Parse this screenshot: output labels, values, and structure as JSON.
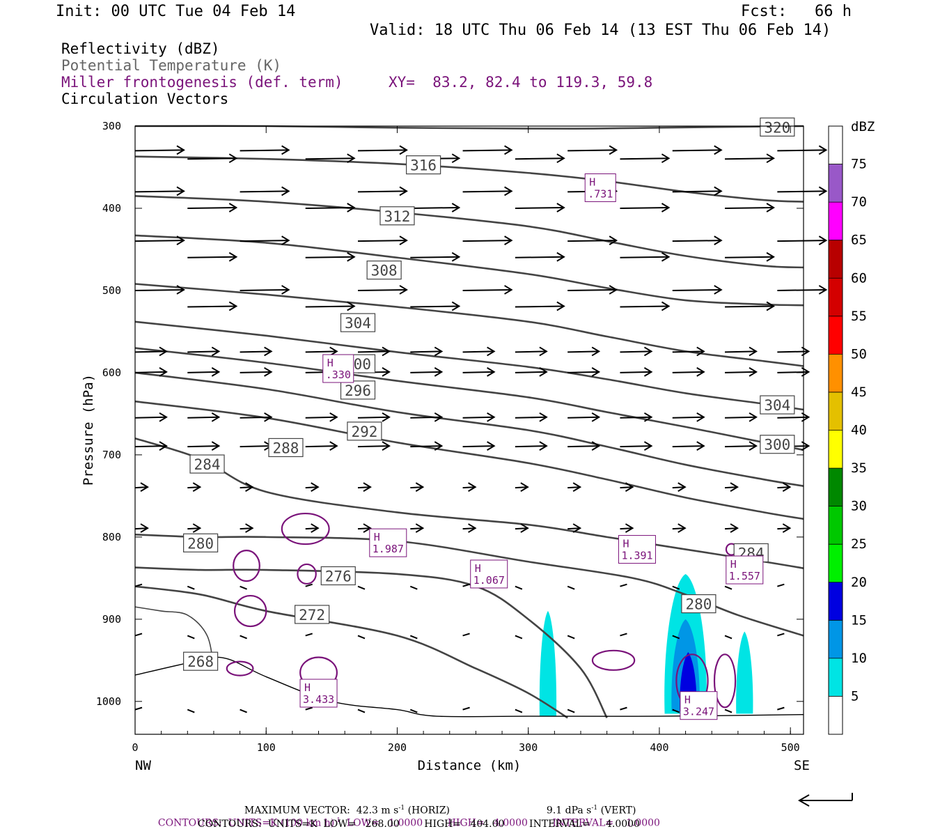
{
  "header": {
    "init": "Init: 00 UTC Tue 04 Feb 14",
    "fcst": "Fcst:   66 h",
    "valid": "Valid: 18 UTC Thu 06 Feb 14 (13 EST Thu 06 Feb 14)"
  },
  "legend": {
    "reflectivity": "Reflectivity (dBZ)",
    "theta": "Potential Temperature (K)",
    "miller": "Miller frontogenesis (def. term)",
    "xy": "XY=  83.2, 82.4 to 119.3, 59.8",
    "vectors": "Circulation Vectors"
  },
  "colors": {
    "theta_line": "#444444",
    "frontogenesis": "#7a137a",
    "vector": "#000000"
  },
  "axes": {
    "ylabel": "Pressure (hPa)",
    "xlabel": "Distance (km)",
    "x_left_label": "NW",
    "x_right_label": "SE"
  },
  "colorbar": {
    "unit": "dBZ",
    "levels": [
      "5",
      "10",
      "15",
      "20",
      "25",
      "30",
      "35",
      "40",
      "45",
      "50",
      "55",
      "60",
      "65",
      "70",
      "75"
    ],
    "colors": [
      "#00e4e4",
      "#0096e6",
      "#0000e0",
      "#00f000",
      "#00c800",
      "#008800",
      "#ffff00",
      "#e4c000",
      "#ff9000",
      "#ff0000",
      "#d40000",
      "#b80000",
      "#ff00ff",
      "#9958c8",
      "#ffffff"
    ]
  },
  "footer": {
    "max_vector_label": "MAXIMUM VECTOR:",
    "max_vector_horiz": "42.3 m s",
    "horiz_tag": " (HORIZ)",
    "max_vector_vert": "9.1 dPa s",
    "vert_tag": " (VERT)",
    "superscript_minus1": "-1",
    "contours1_a": "CONTOURS:  UNITS=K (100 km h)",
    "contours1_b": "  LOW=   1.0000        HIGH=   4.0000        INTERVAL=    1.0000",
    "contours2": "CONTOURS:  UNITS=K  LOW=   268.00        HIGH=   404.00        INTERVAL=     4.0000"
  },
  "chart_data": {
    "type": "cross-section",
    "xlim": [
      0,
      510
    ],
    "ylim_hPa": [
      1040,
      300
    ],
    "x_ticks": [
      0,
      100,
      200,
      300,
      400,
      500
    ],
    "y_ticks": [
      300,
      400,
      500,
      600,
      700,
      800,
      900,
      1000
    ],
    "theta_contours": [
      {
        "label": "320",
        "x": [
          0,
          100,
          200,
          300,
          350,
          400,
          450,
          510
        ],
        "p": [
          300,
          300,
          302,
          303,
          303,
          302,
          301,
          300
        ]
      },
      {
        "label": "316",
        "x": [
          0,
          100,
          200,
          300,
          360,
          420,
          480,
          510
        ],
        "p": [
          337,
          340,
          346,
          357,
          367,
          380,
          390,
          392
        ]
      },
      {
        "label": "312",
        "x": [
          0,
          100,
          200,
          300,
          360,
          420,
          480,
          510
        ],
        "p": [
          385,
          392,
          405,
          422,
          440,
          458,
          470,
          472
        ]
      },
      {
        "label": "308",
        "x": [
          0,
          100,
          200,
          300,
          360,
          420,
          480,
          510
        ],
        "p": [
          433,
          442,
          460,
          480,
          497,
          512,
          517,
          518
        ]
      },
      {
        "label": "304",
        "x": [
          0,
          100,
          200,
          300,
          360,
          420,
          480,
          510
        ],
        "p": [
          492,
          505,
          520,
          538,
          556,
          574,
          586,
          592
        ]
      },
      {
        "label": "300",
        "x": [
          0,
          100,
          200,
          300,
          360,
          420,
          480,
          510
        ],
        "p": [
          538,
          555,
          575,
          593,
          608,
          625,
          638,
          645
        ]
      },
      {
        "label": "296",
        "x": [
          0,
          100,
          200,
          300,
          360,
          420,
          480,
          510
        ],
        "p": [
          570,
          588,
          610,
          630,
          648,
          666,
          685,
          694
        ]
      },
      {
        "label": "292",
        "x": [
          0,
          100,
          200,
          300,
          360,
          420,
          480,
          510
        ],
        "p": [
          600,
          620,
          648,
          670,
          690,
          712,
          730,
          738
        ]
      },
      {
        "label": "288",
        "x": [
          0,
          100,
          200,
          300,
          360,
          420,
          480,
          510
        ],
        "p": [
          635,
          655,
          685,
          710,
          730,
          752,
          770,
          778
        ]
      },
      {
        "label": "284",
        "x": [
          0,
          50,
          100,
          200,
          300,
          360,
          420,
          480,
          510
        ],
        "p": [
          680,
          705,
          745,
          770,
          785,
          800,
          815,
          830,
          838
        ]
      },
      {
        "label": "280",
        "x": [
          0,
          50,
          100,
          200,
          300,
          380,
          420,
          460,
          510
        ],
        "p": [
          797,
          800,
          800,
          805,
          830,
          850,
          870,
          895,
          920
        ]
      },
      {
        "label": "276",
        "x": [
          0,
          50,
          100,
          200,
          260,
          300,
          340,
          360
        ],
        "p": [
          837,
          840,
          840,
          845,
          860,
          900,
          960,
          1020
        ]
      },
      {
        "label": "272",
        "x": [
          0,
          50,
          100,
          200,
          260,
          300,
          330
        ],
        "p": [
          860,
          870,
          890,
          920,
          960,
          990,
          1020
        ]
      },
      {
        "label": "268",
        "x": [
          0,
          20,
          40,
          55,
          60
        ],
        "p": [
          885,
          890,
          895,
          920,
          960
        ]
      }
    ],
    "reflectivity_cells": [
      {
        "dbz": 5,
        "center_km": 315,
        "top_hPa": 890,
        "bottom_hPa": 1018
      },
      {
        "dbz": 5,
        "center_km": 420,
        "top_hPa": 845,
        "bottom_hPa": 1015
      },
      {
        "dbz": 10,
        "center_km": 420,
        "top_hPa": 900,
        "bottom_hPa": 1012
      },
      {
        "dbz": 15,
        "center_km": 422,
        "top_hPa": 940,
        "bottom_hPa": 1012
      },
      {
        "dbz": 5,
        "center_km": 465,
        "top_hPa": 915,
        "bottom_hPa": 1015
      }
    ],
    "frontogenesis_maxima": [
      {
        "label": "H",
        "value": ".731",
        "x": 355,
        "p": 375
      },
      {
        "label": "H",
        "value": ".330",
        "x": 155,
        "p": 595
      },
      {
        "label": "H",
        "value": "1.987",
        "x": 193,
        "p": 807
      },
      {
        "label": "H",
        "value": "1.067",
        "x": 270,
        "p": 845
      },
      {
        "label": "H",
        "value": "1.391",
        "x": 383,
        "p": 815
      },
      {
        "label": "H",
        "value": "1.557",
        "x": 465,
        "p": 840
      },
      {
        "label": "H",
        "value": "3.433",
        "x": 140,
        "p": 990
      },
      {
        "label": "H",
        "value": "3.247",
        "x": 430,
        "p": 1005
      }
    ],
    "vectors_rows_hPa": [
      330,
      340,
      380,
      400,
      440,
      460,
      500,
      520,
      575,
      600,
      655,
      690,
      740,
      790,
      860,
      920,
      1010
    ]
  }
}
